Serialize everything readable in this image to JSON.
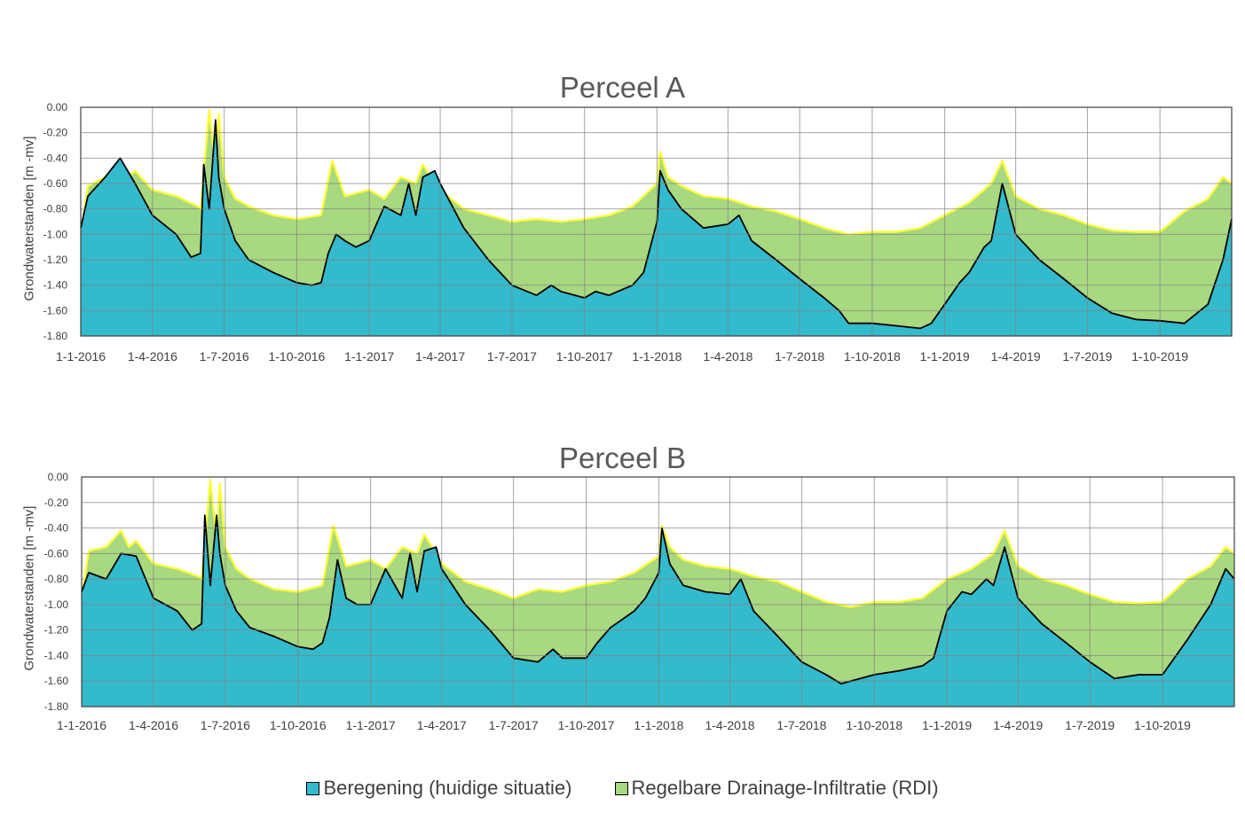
{
  "legend": {
    "items": [
      {
        "label": "Beregening (huidige situatie)",
        "color": "#33bacc"
      },
      {
        "label": "Regelbare Drainage-Infiltratie (RDI)",
        "color": "#a8d880"
      }
    ]
  },
  "colors": {
    "rdi_line": "#ffff33",
    "beregening_line": "#000000",
    "grid": "#808080"
  },
  "chart_data": [
    {
      "type": "area",
      "title": "Perceel A",
      "ylabel": "Grondwaterstanden [m -mv]",
      "xlabel": "",
      "x_ticks": [
        "1-1-2016",
        "1-4-2016",
        "1-7-2016",
        "1-10-2016",
        "1-1-2017",
        "1-4-2017",
        "1-7-2017",
        "1-10-2017",
        "1-1-2018",
        "1-4-2018",
        "1-7-2018",
        "1-10-2018",
        "1-1-2019",
        "1-4-2019",
        "1-7-2019",
        "1-10-2019"
      ],
      "y_ticks": [
        "0.00",
        "-0.20",
        "-0.40",
        "-0.60",
        "-0.80",
        "-1.00",
        "-1.20",
        "-1.40",
        "-1.60",
        "-1.80"
      ],
      "xlim": [
        "2016-01-01",
        "2019-12-31"
      ],
      "ylim": [
        -1.8,
        0.0
      ],
      "grid": true,
      "legend_position": "bottom",
      "series": [
        {
          "name": "Regelbare Drainage-Infiltratie (RDI)",
          "x": [
            "2016-01-01",
            "2016-01-10",
            "2016-02-01",
            "2016-02-20",
            "2016-03-01",
            "2016-03-10",
            "2016-04-01",
            "2016-05-01",
            "2016-05-28",
            "2016-06-01",
            "2016-06-12",
            "2016-06-20",
            "2016-06-24",
            "2016-07-01",
            "2016-07-15",
            "2016-08-01",
            "2016-09-01",
            "2016-10-01",
            "2016-11-01",
            "2016-11-15",
            "2016-12-01",
            "2017-01-01",
            "2017-01-20",
            "2017-02-10",
            "2017-03-01",
            "2017-03-10",
            "2017-03-25",
            "2017-04-01",
            "2017-05-01",
            "2017-06-01",
            "2017-07-01",
            "2017-08-01",
            "2017-09-01",
            "2017-10-01",
            "2017-11-01",
            "2017-12-01",
            "2018-01-01",
            "2018-01-05",
            "2018-01-15",
            "2018-02-01",
            "2018-03-01",
            "2018-04-01",
            "2018-05-01",
            "2018-06-01",
            "2018-07-01",
            "2018-08-01",
            "2018-09-01",
            "2018-10-01",
            "2018-11-01",
            "2018-12-01",
            "2019-01-01",
            "2019-02-01",
            "2019-03-01",
            "2019-03-15",
            "2019-04-01",
            "2019-05-01",
            "2019-06-01",
            "2019-07-01",
            "2019-08-01",
            "2019-09-01",
            "2019-10-01",
            "2019-11-01",
            "2019-12-01",
            "2019-12-20",
            "2019-12-31"
          ],
          "y": [
            -1.0,
            -0.62,
            -0.55,
            -0.42,
            -0.55,
            -0.5,
            -0.65,
            -0.7,
            -0.78,
            -0.8,
            -0.02,
            -0.5,
            -0.05,
            -0.55,
            -0.72,
            -0.78,
            -0.85,
            -0.88,
            -0.85,
            -0.42,
            -0.7,
            -0.65,
            -0.72,
            -0.55,
            -0.6,
            -0.45,
            -0.6,
            -0.65,
            -0.8,
            -0.85,
            -0.9,
            -0.88,
            -0.9,
            -0.88,
            -0.85,
            -0.78,
            -0.6,
            -0.35,
            -0.55,
            -0.62,
            -0.7,
            -0.72,
            -0.78,
            -0.82,
            -0.88,
            -0.95,
            -1.0,
            -0.98,
            -0.98,
            -0.95,
            -0.85,
            -0.75,
            -0.6,
            -0.42,
            -0.7,
            -0.8,
            -0.85,
            -0.92,
            -0.97,
            -0.98,
            -0.98,
            -0.82,
            -0.72,
            -0.55,
            -0.6
          ]
        },
        {
          "name": "Beregening (huidige situatie)",
          "x": [
            "2016-01-01",
            "2016-01-10",
            "2016-02-01",
            "2016-02-20",
            "2016-03-10",
            "2016-04-01",
            "2016-05-01",
            "2016-05-20",
            "2016-06-01",
            "2016-06-05",
            "2016-06-12",
            "2016-06-20",
            "2016-06-24",
            "2016-07-01",
            "2016-07-15",
            "2016-08-01",
            "2016-09-01",
            "2016-10-01",
            "2016-10-20",
            "2016-11-01",
            "2016-11-10",
            "2016-11-20",
            "2016-12-01",
            "2016-12-15",
            "2017-01-01",
            "2017-01-20",
            "2017-02-10",
            "2017-02-20",
            "2017-03-01",
            "2017-03-10",
            "2017-03-25",
            "2017-04-01",
            "2017-05-01",
            "2017-06-01",
            "2017-07-01",
            "2017-08-01",
            "2017-08-20",
            "2017-09-01",
            "2017-10-01",
            "2017-10-15",
            "2017-11-01",
            "2017-12-01",
            "2017-12-15",
            "2018-01-01",
            "2018-01-05",
            "2018-01-15",
            "2018-02-01",
            "2018-03-01",
            "2018-04-01",
            "2018-04-15",
            "2018-05-01",
            "2018-06-01",
            "2018-07-01",
            "2018-08-01",
            "2018-08-20",
            "2018-09-01",
            "2018-10-01",
            "2018-11-01",
            "2018-12-01",
            "2018-12-15",
            "2019-01-01",
            "2019-01-20",
            "2019-02-01",
            "2019-02-20",
            "2019-03-01",
            "2019-03-15",
            "2019-04-01",
            "2019-05-01",
            "2019-06-01",
            "2019-07-01",
            "2019-08-01",
            "2019-09-01",
            "2019-10-01",
            "2019-11-01",
            "2019-12-01",
            "2019-12-20",
            "2019-12-31"
          ],
          "y": [
            -0.95,
            -0.7,
            -0.55,
            -0.4,
            -0.6,
            -0.85,
            -1.0,
            -1.18,
            -1.15,
            -0.45,
            -0.8,
            -0.1,
            -0.55,
            -0.8,
            -1.05,
            -1.2,
            -1.3,
            -1.38,
            -1.4,
            -1.38,
            -1.15,
            -1.0,
            -1.05,
            -1.1,
            -1.05,
            -0.78,
            -0.85,
            -0.6,
            -0.85,
            -0.55,
            -0.5,
            -0.6,
            -0.95,
            -1.2,
            -1.4,
            -1.48,
            -1.4,
            -1.45,
            -1.5,
            -1.45,
            -1.48,
            -1.4,
            -1.3,
            -0.9,
            -0.5,
            -0.65,
            -0.8,
            -0.95,
            -0.92,
            -0.85,
            -1.05,
            -1.2,
            -1.35,
            -1.5,
            -1.6,
            -1.7,
            -1.7,
            -1.72,
            -1.74,
            -1.7,
            -1.55,
            -1.38,
            -1.3,
            -1.1,
            -1.05,
            -0.6,
            -1.0,
            -1.2,
            -1.35,
            -1.5,
            -1.62,
            -1.67,
            -1.68,
            -1.7,
            -1.55,
            -1.2,
            -0.88
          ]
        }
      ]
    },
    {
      "type": "area",
      "title": "Perceel B",
      "ylabel": "Grondwaterstanden [m -mv]",
      "xlabel": "",
      "x_ticks": [
        "1-1-2016",
        "1-4-2016",
        "1-7-2016",
        "1-10-2016",
        "1-1-2017",
        "1-4-2017",
        "1-7-2017",
        "1-10-2017",
        "1-1-2018",
        "1-4-2018",
        "1-7-2018",
        "1-10-2018",
        "1-1-2019",
        "1-4-2019",
        "1-7-2019",
        "1-10-2019"
      ],
      "y_ticks": [
        "0.00",
        "-0.20",
        "-0.40",
        "-0.60",
        "-0.80",
        "-1.00",
        "-1.20",
        "-1.40",
        "-1.60",
        "-1.80"
      ],
      "xlim": [
        "2016-01-01",
        "2019-12-31"
      ],
      "ylim": [
        -1.8,
        0.0
      ],
      "grid": true,
      "legend_position": "bottom",
      "series": [
        {
          "name": "Regelbare Drainage-Infiltratie (RDI)",
          "x": [
            "2016-01-01",
            "2016-01-10",
            "2016-02-01",
            "2016-02-20",
            "2016-03-01",
            "2016-03-10",
            "2016-04-01",
            "2016-05-01",
            "2016-05-28",
            "2016-06-01",
            "2016-06-12",
            "2016-06-20",
            "2016-06-24",
            "2016-07-01",
            "2016-07-15",
            "2016-08-01",
            "2016-09-01",
            "2016-10-01",
            "2016-11-01",
            "2016-11-15",
            "2016-12-01",
            "2017-01-01",
            "2017-01-20",
            "2017-02-10",
            "2017-03-01",
            "2017-03-10",
            "2017-03-25",
            "2017-04-01",
            "2017-05-01",
            "2017-06-01",
            "2017-07-01",
            "2017-08-01",
            "2017-09-01",
            "2017-10-01",
            "2017-11-01",
            "2017-12-01",
            "2018-01-01",
            "2018-01-05",
            "2018-01-15",
            "2018-02-01",
            "2018-03-01",
            "2018-04-01",
            "2018-05-01",
            "2018-06-01",
            "2018-07-01",
            "2018-08-01",
            "2018-09-01",
            "2018-10-01",
            "2018-11-01",
            "2018-12-01",
            "2019-01-01",
            "2019-02-01",
            "2019-03-01",
            "2019-03-15",
            "2019-04-01",
            "2019-05-01",
            "2019-06-01",
            "2019-07-01",
            "2019-08-01",
            "2019-09-01",
            "2019-10-01",
            "2019-11-01",
            "2019-12-01",
            "2019-12-20",
            "2019-12-31"
          ],
          "y": [
            -0.95,
            -0.58,
            -0.55,
            -0.42,
            -0.55,
            -0.5,
            -0.68,
            -0.72,
            -0.78,
            -0.8,
            -0.02,
            -0.48,
            -0.05,
            -0.55,
            -0.72,
            -0.8,
            -0.88,
            -0.9,
            -0.85,
            -0.38,
            -0.7,
            -0.65,
            -0.72,
            -0.55,
            -0.6,
            -0.45,
            -0.6,
            -0.68,
            -0.82,
            -0.88,
            -0.95,
            -0.88,
            -0.9,
            -0.85,
            -0.82,
            -0.75,
            -0.62,
            -0.38,
            -0.55,
            -0.65,
            -0.7,
            -0.72,
            -0.78,
            -0.82,
            -0.9,
            -0.98,
            -1.02,
            -0.98,
            -0.98,
            -0.95,
            -0.8,
            -0.72,
            -0.6,
            -0.42,
            -0.7,
            -0.8,
            -0.85,
            -0.92,
            -0.98,
            -0.99,
            -0.98,
            -0.8,
            -0.7,
            -0.55,
            -0.6
          ]
        },
        {
          "name": "Beregening (huidige situatie)",
          "x": [
            "2016-01-01",
            "2016-01-10",
            "2016-02-01",
            "2016-02-20",
            "2016-03-10",
            "2016-04-01",
            "2016-05-01",
            "2016-05-20",
            "2016-06-01",
            "2016-06-05",
            "2016-06-12",
            "2016-06-20",
            "2016-06-24",
            "2016-07-01",
            "2016-07-15",
            "2016-08-01",
            "2016-09-01",
            "2016-10-01",
            "2016-10-20",
            "2016-11-01",
            "2016-11-10",
            "2016-11-20",
            "2016-12-01",
            "2016-12-15",
            "2017-01-01",
            "2017-01-20",
            "2017-02-10",
            "2017-02-20",
            "2017-03-01",
            "2017-03-10",
            "2017-03-25",
            "2017-04-01",
            "2017-05-01",
            "2017-06-01",
            "2017-07-01",
            "2017-08-01",
            "2017-08-20",
            "2017-09-01",
            "2017-10-01",
            "2017-10-15",
            "2017-11-01",
            "2017-12-01",
            "2017-12-15",
            "2018-01-01",
            "2018-01-05",
            "2018-01-15",
            "2018-02-01",
            "2018-03-01",
            "2018-04-01",
            "2018-04-15",
            "2018-05-01",
            "2018-06-01",
            "2018-07-01",
            "2018-08-01",
            "2018-08-20",
            "2018-09-01",
            "2018-10-01",
            "2018-11-01",
            "2018-12-01",
            "2018-12-15",
            "2019-01-01",
            "2019-01-20",
            "2019-02-01",
            "2019-02-20",
            "2019-03-01",
            "2019-03-15",
            "2019-04-01",
            "2019-05-01",
            "2019-06-01",
            "2019-07-01",
            "2019-08-01",
            "2019-09-01",
            "2019-10-01",
            "2019-11-01",
            "2019-12-01",
            "2019-12-20",
            "2019-12-31"
          ],
          "y": [
            -0.9,
            -0.75,
            -0.8,
            -0.6,
            -0.62,
            -0.95,
            -1.05,
            -1.2,
            -1.15,
            -0.3,
            -0.85,
            -0.3,
            -0.6,
            -0.85,
            -1.05,
            -1.18,
            -1.25,
            -1.33,
            -1.35,
            -1.3,
            -1.1,
            -0.65,
            -0.95,
            -1.0,
            -1.0,
            -0.72,
            -0.95,
            -0.6,
            -0.9,
            -0.58,
            -0.55,
            -0.72,
            -1.0,
            -1.2,
            -1.42,
            -1.45,
            -1.35,
            -1.42,
            -1.42,
            -1.3,
            -1.18,
            -1.05,
            -0.95,
            -0.75,
            -0.4,
            -0.68,
            -0.85,
            -0.9,
            -0.92,
            -0.8,
            -1.05,
            -1.25,
            -1.45,
            -1.55,
            -1.62,
            -1.6,
            -1.55,
            -1.52,
            -1.48,
            -1.42,
            -1.05,
            -0.9,
            -0.92,
            -0.8,
            -0.85,
            -0.55,
            -0.95,
            -1.15,
            -1.3,
            -1.45,
            -1.58,
            -1.55,
            -1.55,
            -1.28,
            -1.0,
            -0.72,
            -0.8
          ]
        }
      ]
    }
  ]
}
